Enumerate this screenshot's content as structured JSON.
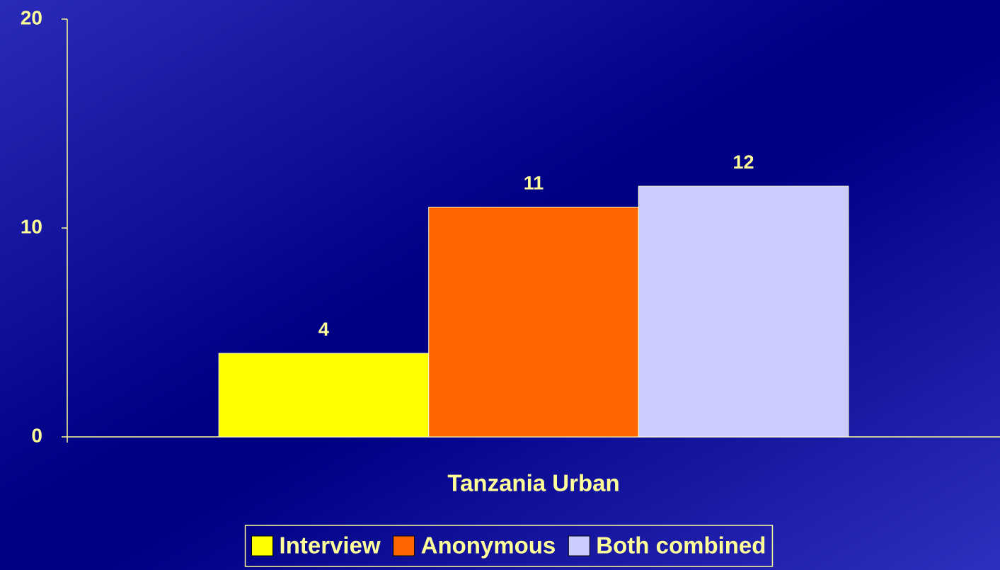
{
  "chart_data": {
    "type": "bar",
    "categories": [
      "Tanzania Urban"
    ],
    "series": [
      {
        "name": "Interview",
        "color": "#ffff00",
        "values": [
          4
        ]
      },
      {
        "name": "Anonymous",
        "color": "#ff6600",
        "values": [
          11
        ]
      },
      {
        "name": "Both combined",
        "color": "#ccccff",
        "values": [
          12
        ]
      }
    ],
    "ylim": [
      0,
      20
    ],
    "yticks": [
      0,
      10,
      20
    ],
    "grid": false,
    "legend": "bottom"
  }
}
